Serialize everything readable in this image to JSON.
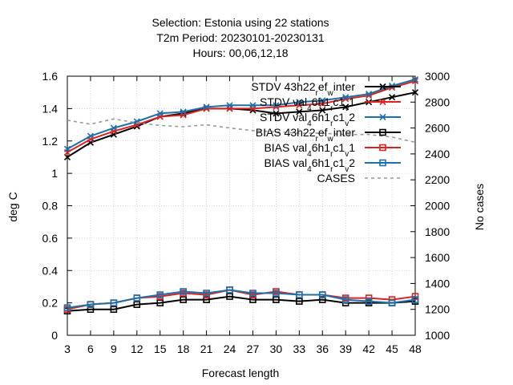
{
  "chart_data": {
    "type": "line",
    "title_lines": [
      "Selection: Estonia using     22 stations",
      "T2m   Period: 20230101-20230131",
      "Hours:  00,06,12,18"
    ],
    "xlabel": "Forecast length",
    "ylabel": "deg C",
    "y2label": "No cases",
    "x": [
      3,
      6,
      9,
      12,
      15,
      18,
      21,
      24,
      27,
      30,
      33,
      36,
      39,
      42,
      45,
      48
    ],
    "xlim": [
      3,
      48
    ],
    "ylim": [
      0,
      1.6
    ],
    "y2lim": [
      1000,
      3000
    ],
    "yticks": [
      "0",
      "0.2",
      "0.4",
      "0.6",
      "0.8",
      "1",
      "1.2",
      "1.4",
      "1.6"
    ],
    "y2ticks": [
      "1000",
      "1200",
      "1400",
      "1600",
      "1800",
      "2000",
      "2200",
      "2400",
      "2600",
      "2800",
      "3000"
    ],
    "xticks": [
      "3",
      "6",
      "9",
      "12",
      "15",
      "18",
      "21",
      "24",
      "27",
      "30",
      "33",
      "36",
      "39",
      "42",
      "45",
      "48"
    ],
    "grid": true,
    "legend_position": "top-right",
    "series": [
      {
        "name": "STDV 43h22_ref_winter",
        "legend_base": "STDV 43h22",
        "legend_parts": [
          [
            "_",
            "r"
          ],
          [
            "",
            "ef"
          ],
          [
            "_",
            "w"
          ],
          [
            "",
            "inter"
          ]
        ],
        "color": "#000000",
        "marker": "x",
        "axis": "y1",
        "values": [
          1.1,
          1.19,
          1.24,
          1.29,
          1.35,
          1.37,
          1.4,
          1.4,
          1.39,
          1.37,
          1.38,
          1.39,
          1.41,
          1.44,
          1.47,
          1.5
        ]
      },
      {
        "name": "STDV val_46h1_rc1_v1",
        "legend_base": "STDV val",
        "legend_parts": [
          [
            "_",
            "4"
          ],
          [
            "",
            "6h1"
          ],
          [
            "_",
            "r"
          ],
          [
            "",
            "c1"
          ],
          [
            "_",
            "v"
          ],
          [
            "",
            "1"
          ]
        ],
        "color": "#dd2222",
        "marker": "x",
        "axis": "y1",
        "values": [
          1.13,
          1.21,
          1.26,
          1.3,
          1.35,
          1.36,
          1.4,
          1.4,
          1.4,
          1.41,
          1.42,
          1.43,
          1.46,
          1.48,
          1.53,
          1.57
        ]
      },
      {
        "name": "STDV val_46h1_rc1_v2",
        "legend_base": "STDV val",
        "legend_parts": [
          [
            "_",
            "4"
          ],
          [
            "",
            "6h1"
          ],
          [
            "_",
            "r"
          ],
          [
            "",
            "c1"
          ],
          [
            "_",
            "v"
          ],
          [
            "",
            "2"
          ]
        ],
        "color": "#1f6fa8",
        "marker": "x",
        "axis": "y1",
        "values": [
          1.15,
          1.23,
          1.28,
          1.32,
          1.37,
          1.38,
          1.41,
          1.42,
          1.42,
          1.42,
          1.44,
          1.45,
          1.47,
          1.49,
          1.54,
          1.58
        ]
      },
      {
        "name": "BIAS 43h22_ref_winter",
        "legend_base": "BIAS 43h22",
        "legend_parts": [
          [
            "_",
            "r"
          ],
          [
            "",
            "ef"
          ],
          [
            "_",
            "w"
          ],
          [
            "",
            "inter"
          ]
        ],
        "color": "#000000",
        "marker": "square",
        "axis": "y1",
        "values": [
          0.15,
          0.16,
          0.16,
          0.19,
          0.2,
          0.22,
          0.22,
          0.24,
          0.22,
          0.22,
          0.21,
          0.22,
          0.2,
          0.2,
          0.2,
          0.21
        ]
      },
      {
        "name": "BIAS val_46h1_rc1_v1",
        "legend_base": "BIAS val",
        "legend_parts": [
          [
            "_",
            "4"
          ],
          [
            "",
            "6h1"
          ],
          [
            "_",
            "r"
          ],
          [
            "",
            "c1"
          ],
          [
            "_",
            "v"
          ],
          [
            "",
            "1"
          ]
        ],
        "color": "#dd2222",
        "marker": "square",
        "axis": "y1",
        "values": [
          0.16,
          0.19,
          0.2,
          0.23,
          0.24,
          0.26,
          0.25,
          0.28,
          0.25,
          0.27,
          0.25,
          0.25,
          0.23,
          0.23,
          0.22,
          0.24
        ]
      },
      {
        "name": "BIAS val_46h1_rc1_v2",
        "legend_base": "BIAS val",
        "legend_parts": [
          [
            "_",
            "4"
          ],
          [
            "",
            "6h1"
          ],
          [
            "_",
            "r"
          ],
          [
            "",
            "c1"
          ],
          [
            "_",
            "v"
          ],
          [
            "",
            "2"
          ]
        ],
        "color": "#1f6fa8",
        "marker": "square",
        "axis": "y1",
        "values": [
          0.17,
          0.19,
          0.2,
          0.23,
          0.25,
          0.27,
          0.26,
          0.28,
          0.26,
          0.26,
          0.25,
          0.25,
          0.22,
          0.21,
          0.2,
          0.22
        ]
      },
      {
        "name": "CASES",
        "legend_base": "CASES",
        "legend_parts": [],
        "color": "#999999",
        "marker": "none",
        "dashed": true,
        "axis": "y2",
        "values": [
          2660,
          2630,
          2670,
          2640,
          2620,
          2610,
          2625,
          2600,
          2580,
          2570,
          2560,
          2560,
          2550,
          2550,
          2530,
          2490
        ]
      }
    ]
  }
}
